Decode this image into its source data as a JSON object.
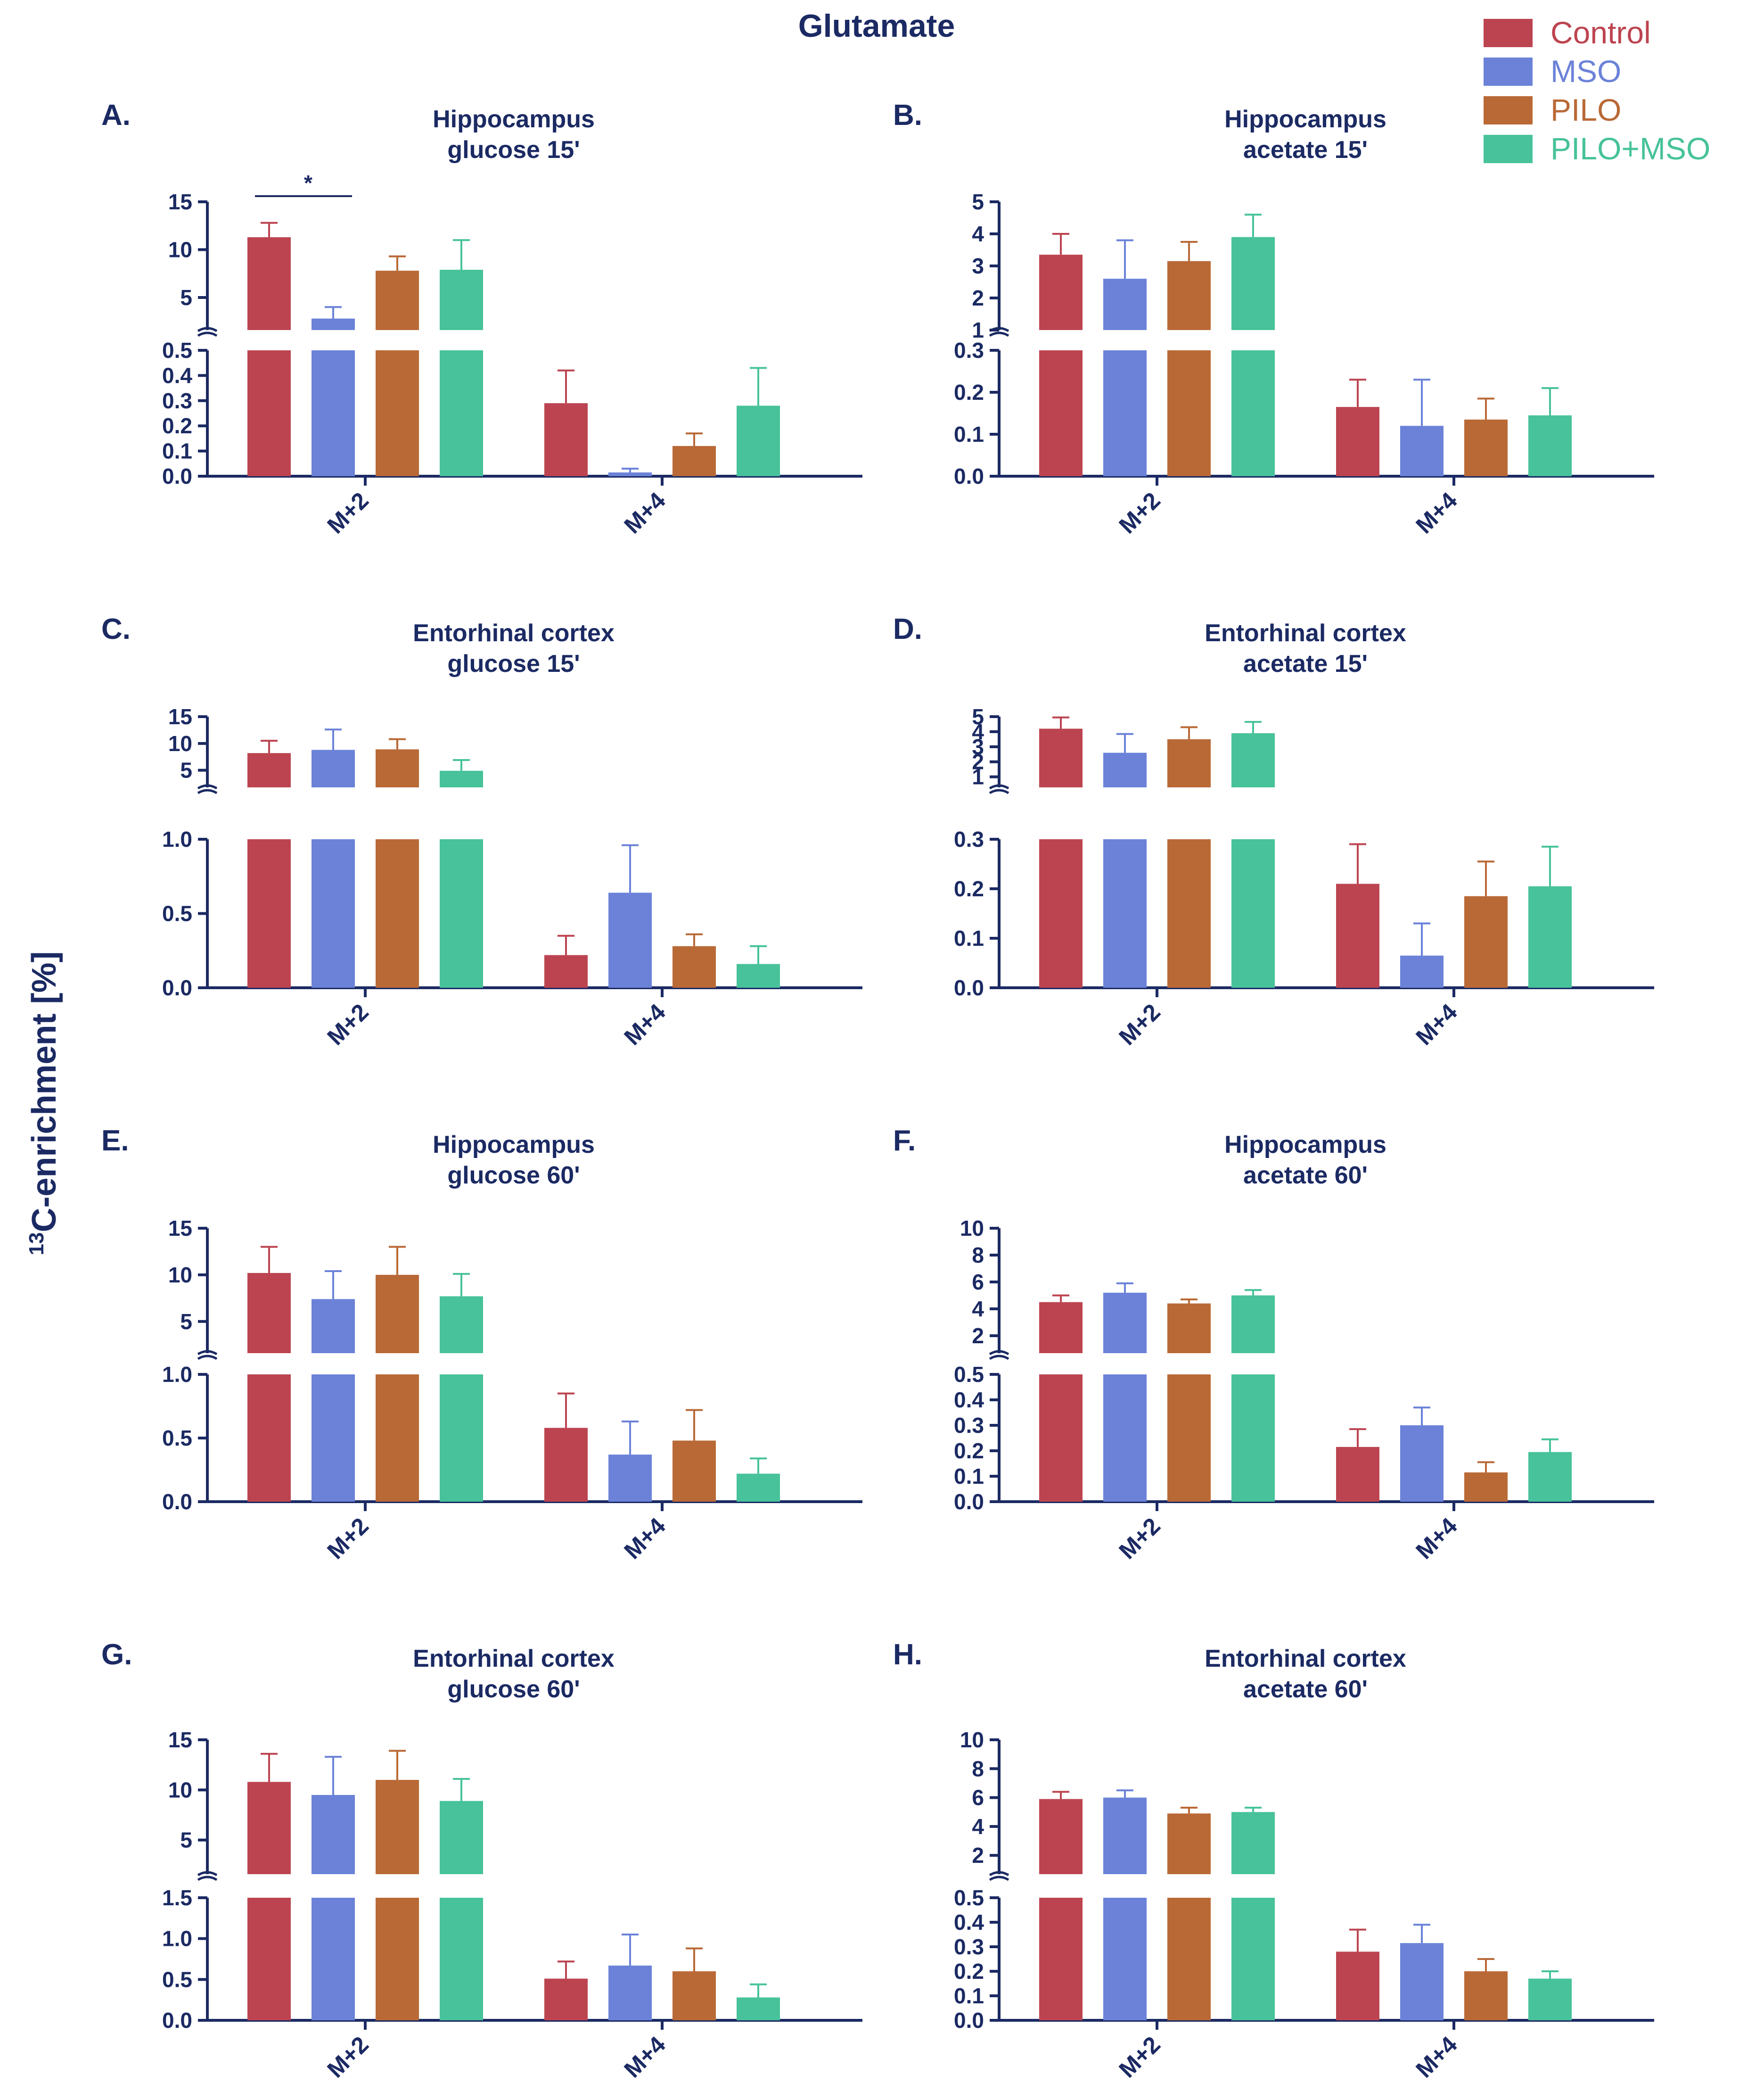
{
  "figure": {
    "title": "Glutamate",
    "ylabel_sup": "13",
    "ylabel_main": "C-enrichment [%]",
    "text_color": "#1b2a63",
    "axis_color": "#1b2a63"
  },
  "legend": {
    "items": [
      {
        "label": "Control",
        "color": "#bc4450"
      },
      {
        "label": "MSO",
        "color": "#6b82d8"
      },
      {
        "label": "PILO",
        "color": "#b96936"
      },
      {
        "label": "PILO+MSO",
        "color": "#47c29a"
      }
    ]
  },
  "chart_data": [
    {
      "type": "bar",
      "panel": "A.",
      "title": [
        "Hippocampus",
        "glucose 15'"
      ],
      "categories": [
        "M+2",
        "M+4"
      ],
      "upper_axis": {
        "range": [
          1.6,
          15
        ],
        "ticks": [
          5,
          10,
          15
        ],
        "tick_labels": [
          "5",
          "10",
          "15"
        ]
      },
      "lower_axis": {
        "range": [
          0,
          0.5
        ],
        "ticks": [
          0,
          0.1,
          0.2,
          0.3,
          0.4,
          0.5
        ],
        "tick_labels": [
          "0.0",
          "0.1",
          "0.2",
          "0.3",
          "0.4",
          "0.5"
        ]
      },
      "series": [
        {
          "name": "Control",
          "values": [
            11.3,
            0.29
          ],
          "errors": [
            1.5,
            0.13
          ]
        },
        {
          "name": "MSO",
          "values": [
            2.8,
            0.015
          ],
          "errors": [
            1.2,
            0.015
          ]
        },
        {
          "name": "PILO",
          "values": [
            7.8,
            0.12
          ],
          "errors": [
            1.5,
            0.05
          ]
        },
        {
          "name": "PILO+MSO",
          "values": [
            7.9,
            0.28
          ],
          "errors": [
            3.1,
            0.15
          ]
        }
      ],
      "annotations": [
        {
          "text": "*",
          "category": 0,
          "from_series": 0,
          "to_series": 1
        }
      ]
    },
    {
      "type": "bar",
      "panel": "B.",
      "title": [
        "Hippocampus",
        "acetate 15'"
      ],
      "categories": [
        "M+2",
        "M+4"
      ],
      "upper_axis": {
        "range": [
          1,
          5
        ],
        "ticks": [
          1,
          2,
          3,
          4,
          5
        ],
        "tick_labels": [
          "1",
          "2",
          "3",
          "4",
          "5"
        ]
      },
      "lower_axis": {
        "range": [
          0,
          0.3
        ],
        "ticks": [
          0,
          0.1,
          0.2,
          0.3
        ],
        "tick_labels": [
          "0.0",
          "0.1",
          "0.2",
          "0.3"
        ]
      },
      "series": [
        {
          "name": "Control",
          "values": [
            3.35,
            0.165
          ],
          "errors": [
            0.65,
            0.065
          ]
        },
        {
          "name": "MSO",
          "values": [
            2.6,
            0.12
          ],
          "errors": [
            1.2,
            0.11
          ]
        },
        {
          "name": "PILO",
          "values": [
            3.15,
            0.135
          ],
          "errors": [
            0.6,
            0.05
          ]
        },
        {
          "name": "PILO+MSO",
          "values": [
            3.9,
            0.145
          ],
          "errors": [
            0.7,
            0.065
          ]
        }
      ]
    },
    {
      "type": "bar",
      "panel": "C.",
      "title": [
        "Entorhinal cortex",
        "glucose 15'"
      ],
      "categories": [
        "M+2",
        "M+4"
      ],
      "upper_axis": {
        "range": [
          1.8,
          15
        ],
        "ticks": [
          5,
          10,
          15
        ],
        "tick_labels": [
          "5",
          "10",
          "15"
        ]
      },
      "lower_axis": {
        "range": [
          0,
          1
        ],
        "ticks": [
          0,
          0.5,
          1
        ],
        "tick_labels": [
          "0.0",
          "0.5",
          "1.0"
        ]
      },
      "series": [
        {
          "name": "Control",
          "values": [
            8.2,
            0.22
          ],
          "errors": [
            2.3,
            0.13
          ]
        },
        {
          "name": "MSO",
          "values": [
            8.8,
            0.64
          ],
          "errors": [
            3.8,
            0.32
          ]
        },
        {
          "name": "PILO",
          "values": [
            8.9,
            0.28
          ],
          "errors": [
            1.9,
            0.08
          ]
        },
        {
          "name": "PILO+MSO",
          "values": [
            4.9,
            0.16
          ],
          "errors": [
            2.0,
            0.12
          ]
        }
      ]
    },
    {
      "type": "bar",
      "panel": "D.",
      "title": [
        "Entorhinal cortex",
        "acetate 15'"
      ],
      "categories": [
        "M+2",
        "M+4"
      ],
      "upper_axis": {
        "range": [
          0.3,
          5
        ],
        "ticks": [
          1,
          2,
          3,
          4,
          5
        ],
        "tick_labels": [
          "1",
          "2",
          "3",
          "4",
          "5"
        ]
      },
      "lower_axis": {
        "range": [
          0,
          0.3
        ],
        "ticks": [
          0,
          0.1,
          0.2,
          0.3
        ],
        "tick_labels": [
          "0.0",
          "0.1",
          "0.2",
          "0.3"
        ]
      },
      "series": [
        {
          "name": "Control",
          "values": [
            4.2,
            0.21
          ],
          "errors": [
            0.75,
            0.08
          ]
        },
        {
          "name": "MSO",
          "values": [
            2.6,
            0.065
          ],
          "errors": [
            1.25,
            0.065
          ]
        },
        {
          "name": "PILO",
          "values": [
            3.5,
            0.185
          ],
          "errors": [
            0.8,
            0.07
          ]
        },
        {
          "name": "PILO+MSO",
          "values": [
            3.9,
            0.205
          ],
          "errors": [
            0.75,
            0.08
          ]
        }
      ]
    },
    {
      "type": "bar",
      "panel": "E.",
      "title": [
        "Hippocampus",
        "glucose 60'"
      ],
      "categories": [
        "M+2",
        "M+4"
      ],
      "upper_axis": {
        "range": [
          1.6,
          15
        ],
        "ticks": [
          5,
          10,
          15
        ],
        "tick_labels": [
          "5",
          "10",
          "15"
        ]
      },
      "lower_axis": {
        "range": [
          0,
          1
        ],
        "ticks": [
          0,
          0.5,
          1
        ],
        "tick_labels": [
          "0.0",
          "0.5",
          "1.0"
        ]
      },
      "series": [
        {
          "name": "Control",
          "values": [
            10.2,
            0.58
          ],
          "errors": [
            2.8,
            0.27
          ]
        },
        {
          "name": "MSO",
          "values": [
            7.4,
            0.37
          ],
          "errors": [
            3.0,
            0.26
          ]
        },
        {
          "name": "PILO",
          "values": [
            10.0,
            0.48
          ],
          "errors": [
            3.0,
            0.24
          ]
        },
        {
          "name": "PILO+MSO",
          "values": [
            7.7,
            0.22
          ],
          "errors": [
            2.4,
            0.12
          ]
        }
      ]
    },
    {
      "type": "bar",
      "panel": "F.",
      "title": [
        "Hippocampus",
        "acetate 60'"
      ],
      "categories": [
        "M+2",
        "M+4"
      ],
      "upper_axis": {
        "range": [
          0.7,
          10
        ],
        "ticks": [
          2,
          4,
          6,
          8,
          10
        ],
        "tick_labels": [
          "2",
          "4",
          "6",
          "8",
          "10"
        ]
      },
      "lower_axis": {
        "range": [
          0,
          0.5
        ],
        "ticks": [
          0,
          0.1,
          0.2,
          0.3,
          0.4,
          0.5
        ],
        "tick_labels": [
          "0.0",
          "0.1",
          "0.2",
          "0.3",
          "0.4",
          "0.5"
        ]
      },
      "series": [
        {
          "name": "Control",
          "values": [
            4.5,
            0.215
          ],
          "errors": [
            0.5,
            0.07
          ]
        },
        {
          "name": "MSO",
          "values": [
            5.2,
            0.3
          ],
          "errors": [
            0.7,
            0.07
          ]
        },
        {
          "name": "PILO",
          "values": [
            4.4,
            0.115
          ],
          "errors": [
            0.3,
            0.04
          ]
        },
        {
          "name": "PILO+MSO",
          "values": [
            5.0,
            0.195
          ],
          "errors": [
            0.4,
            0.05
          ]
        }
      ]
    },
    {
      "type": "bar",
      "panel": "G.",
      "title": [
        "Entorhinal cortex",
        "glucose 60'"
      ],
      "categories": [
        "M+2",
        "M+4"
      ],
      "upper_axis": {
        "range": [
          1.6,
          15
        ],
        "ticks": [
          5,
          10,
          15
        ],
        "tick_labels": [
          "5",
          "10",
          "15"
        ]
      },
      "lower_axis": {
        "range": [
          0,
          1.5
        ],
        "ticks": [
          0,
          0.5,
          1,
          1.5
        ],
        "tick_labels": [
          "0.0",
          "0.5",
          "1.0",
          "1.5"
        ]
      },
      "series": [
        {
          "name": "Control",
          "values": [
            10.8,
            0.51
          ],
          "errors": [
            2.8,
            0.21
          ]
        },
        {
          "name": "MSO",
          "values": [
            9.5,
            0.67
          ],
          "errors": [
            3.8,
            0.38
          ]
        },
        {
          "name": "PILO",
          "values": [
            11.0,
            0.6
          ],
          "errors": [
            2.9,
            0.28
          ]
        },
        {
          "name": "PILO+MSO",
          "values": [
            8.9,
            0.28
          ],
          "errors": [
            2.2,
            0.16
          ]
        }
      ]
    },
    {
      "type": "bar",
      "panel": "H.",
      "title": [
        "Entorhinal cortex",
        "acetate 60'"
      ],
      "categories": [
        "M+2",
        "M+4"
      ],
      "upper_axis": {
        "range": [
          0.7,
          10
        ],
        "ticks": [
          2,
          4,
          6,
          8,
          10
        ],
        "tick_labels": [
          "2",
          "4",
          "6",
          "8",
          "10"
        ]
      },
      "lower_axis": {
        "range": [
          0,
          0.5
        ],
        "ticks": [
          0,
          0.1,
          0.2,
          0.3,
          0.4,
          0.5
        ],
        "tick_labels": [
          "0.0",
          "0.1",
          "0.2",
          "0.3",
          "0.4",
          "0.5"
        ]
      },
      "series": [
        {
          "name": "Control",
          "values": [
            5.9,
            0.28
          ],
          "errors": [
            0.5,
            0.09
          ]
        },
        {
          "name": "MSO",
          "values": [
            6.0,
            0.315
          ],
          "errors": [
            0.5,
            0.075
          ]
        },
        {
          "name": "PILO",
          "values": [
            4.9,
            0.2
          ],
          "errors": [
            0.4,
            0.05
          ]
        },
        {
          "name": "PILO+MSO",
          "values": [
            5.0,
            0.17
          ],
          "errors": [
            0.3,
            0.03
          ]
        }
      ]
    }
  ]
}
